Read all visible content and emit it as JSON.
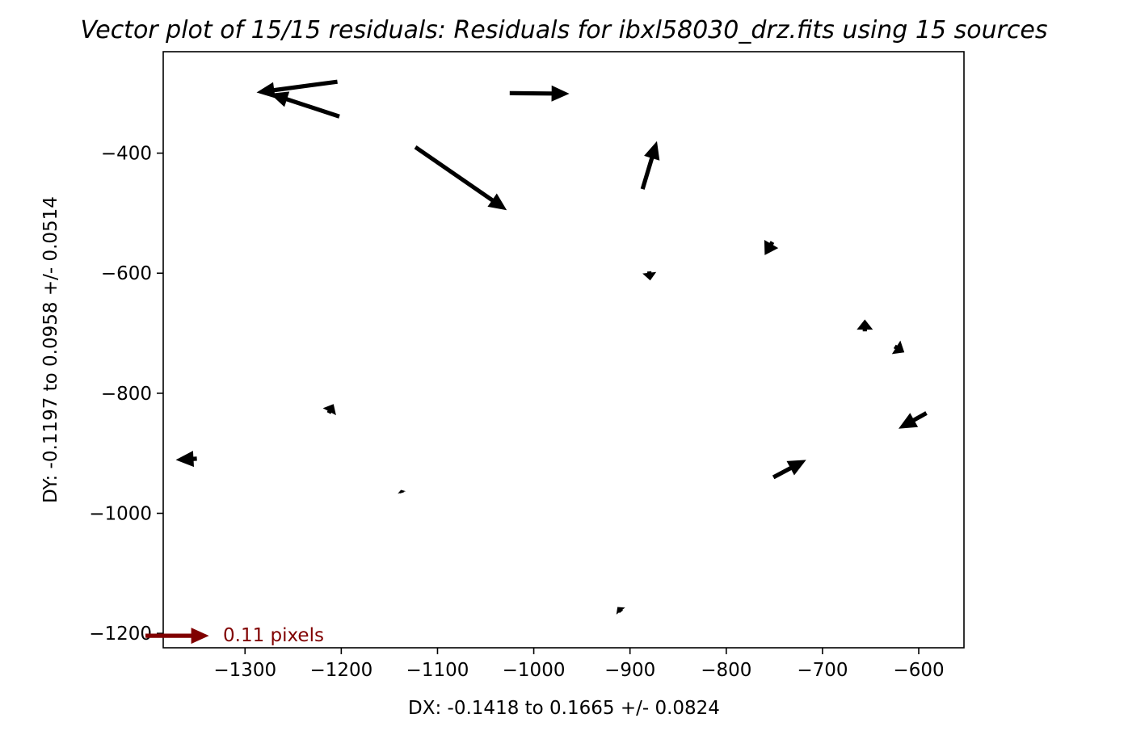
{
  "chart_data": {
    "type": "quiver",
    "title": "Vector plot of 15/15 residuals: Residuals for ibxl58030_drz.fits using 15 sources",
    "xlabel": "DX: -0.1418 to 0.1665 +/- 0.0824",
    "ylabel": "DY: -0.1197 to 0.0958 +/- 0.0514",
    "xlim": [
      -1385,
      -553
    ],
    "ylim": [
      -1224,
      -231
    ],
    "xticks": [
      -1300,
      -1200,
      -1100,
      -1000,
      -900,
      -800,
      -700,
      -600
    ],
    "yticks": [
      -400,
      -600,
      -800,
      -1000,
      -1200
    ],
    "xtick_labels": [
      "−1300",
      "−1200",
      "−1100",
      "−1000",
      "−900",
      "−800",
      "−700",
      "−600"
    ],
    "ytick_labels": [
      "−400",
      "−600",
      "−800",
      "−1000",
      "−1200"
    ],
    "grid": false,
    "arrow_color": "#000000",
    "key": {
      "label": "0.11 pixels",
      "color": "#800000",
      "x": -1385,
      "y": -1204,
      "dx": 66,
      "dy": 0
    },
    "vectors": [
      {
        "x": -1204,
        "y": -281,
        "dx": -84,
        "dy": -18
      },
      {
        "x": -1202,
        "y": -339,
        "dx": -72,
        "dy": 38
      },
      {
        "x": -1025,
        "y": -300,
        "dx": 62,
        "dy": -1
      },
      {
        "x": -1123,
        "y": -390,
        "dx": 95,
        "dy": -105
      },
      {
        "x": -887,
        "y": -460,
        "dx": 15,
        "dy": 80
      },
      {
        "x": -752,
        "y": -548,
        "dx": -8,
        "dy": -22
      },
      {
        "x": -880,
        "y": -597,
        "dx": 1,
        "dy": -15
      },
      {
        "x": -656,
        "y": -697,
        "dx": 0,
        "dy": 20
      },
      {
        "x": -625,
        "y": -722,
        "dx": 10,
        "dy": -10
      },
      {
        "x": -1213,
        "y": -833,
        "dx": 5,
        "dy": 15
      },
      {
        "x": -1350,
        "y": -909,
        "dx": -22,
        "dy": -2
      },
      {
        "x": -592,
        "y": -833,
        "dx": -29,
        "dy": -26
      },
      {
        "x": -751,
        "y": -940,
        "dx": 34,
        "dy": 29
      },
      {
        "x": -1137,
        "y": -966,
        "dx": -1,
        "dy": 5
      },
      {
        "x": -909,
        "y": -1164,
        "dx": -4,
        "dy": 8
      }
    ]
  }
}
